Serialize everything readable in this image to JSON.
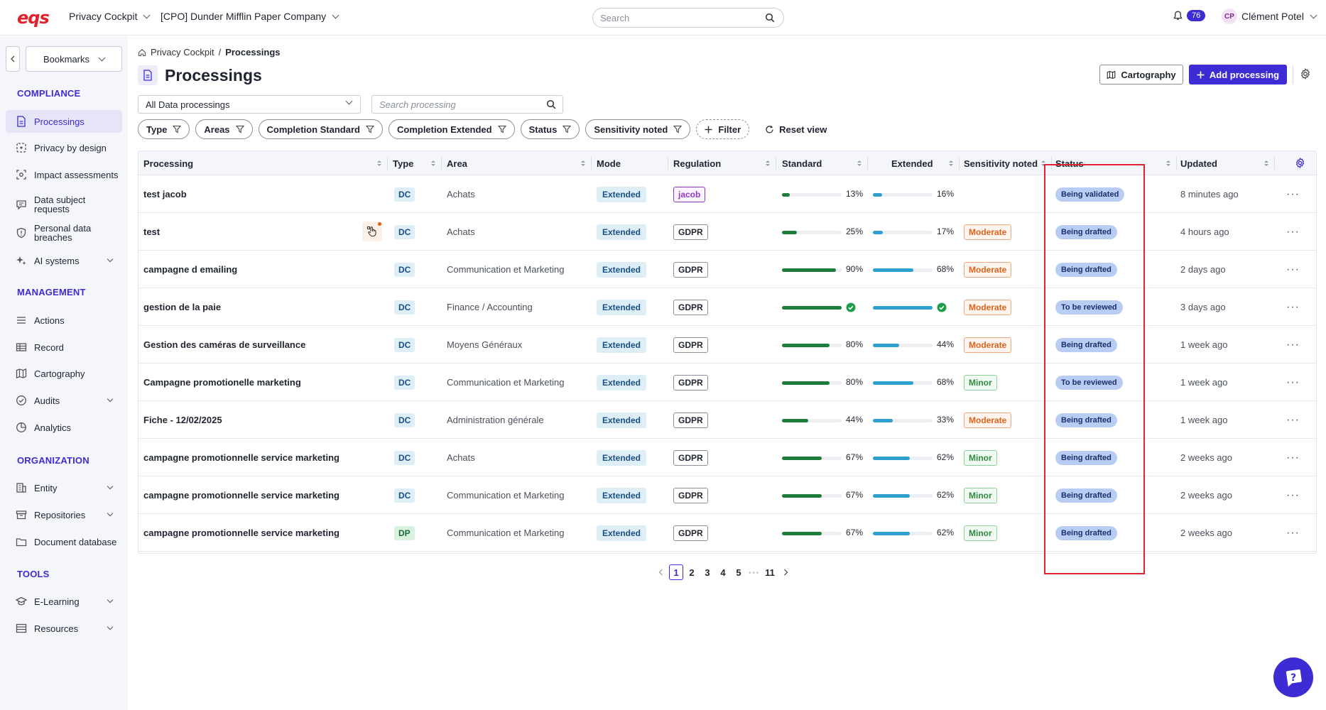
{
  "header": {
    "logo_text": "eqs",
    "app_menu": "Privacy Cockpit",
    "company_menu": "[CPO] Dunder Mifflin Paper Company",
    "search_placeholder": "Search",
    "notification_count": "76",
    "user_initials": "CP",
    "user_name": "Clément Potel"
  },
  "sidebar": {
    "bookmarks_label": "Bookmarks",
    "sections": {
      "compliance": "COMPLIANCE",
      "management": "MANAGEMENT",
      "organization": "ORGANIZATION",
      "tools": "TOOLS"
    },
    "items": {
      "processings": "Processings",
      "privacy_by_design": "Privacy by design",
      "impact_assessments": "Impact assessments",
      "dsr_line1": "Data subject",
      "dsr_line2": "requests",
      "pdb_line1": "Personal data",
      "pdb_line2": "breaches",
      "ai_systems": "AI systems",
      "actions": "Actions",
      "record": "Record",
      "cartography": "Cartography",
      "audits": "Audits",
      "analytics": "Analytics",
      "entity": "Entity",
      "repositories": "Repositories",
      "document_database": "Document database",
      "elearning": "E-Learning",
      "resources": "Resources"
    }
  },
  "breadcrumb": {
    "root": "Privacy Cockpit",
    "separator": "/",
    "current": "Processings"
  },
  "page": {
    "title": "Processings",
    "cartography_button": "Cartography",
    "add_button": "Add processing",
    "dataset_select": "All Data processings",
    "search_placeholder": "Search processing"
  },
  "filters": {
    "chips": [
      "Type",
      "Areas",
      "Completion Standard",
      "Completion Extended",
      "Status",
      "Sensitivity noted"
    ],
    "add_filter": "Filter",
    "reset_view": "Reset view"
  },
  "table": {
    "columns": {
      "processing": "Processing",
      "type": "Type",
      "area": "Area",
      "mode": "Mode",
      "regulation": "Regulation",
      "standard": "Standard",
      "extended": "Extended",
      "sensitivity": "Sensitivity noted",
      "status": "Status",
      "updated": "Updated"
    },
    "rows": [
      {
        "name": "test jacob",
        "type": "DC",
        "area": "Achats",
        "mode": "Extended",
        "regulation": "jacob",
        "standard": 13,
        "standard_label": "13%",
        "extended": 16,
        "extended_label": "16%",
        "sensitivity": "",
        "status": "Being validated",
        "updated": "8 minutes ago"
      },
      {
        "name": "test",
        "type": "DC",
        "area": "Achats",
        "mode": "Extended",
        "regulation": "GDPR",
        "standard": 25,
        "standard_label": "25%",
        "extended": 17,
        "extended_label": "17%",
        "sensitivity": "Moderate",
        "status": "Being drafted",
        "updated": "4 hours ago"
      },
      {
        "name": "campagne d emailing",
        "type": "DC",
        "area": "Communication et Marketing",
        "mode": "Extended",
        "regulation": "GDPR",
        "standard": 90,
        "standard_label": "90%",
        "extended": 68,
        "extended_label": "68%",
        "sensitivity": "Moderate",
        "status": "Being drafted",
        "updated": "2 days ago"
      },
      {
        "name": "gestion de la paie",
        "type": "DC",
        "area": "Finance / Accounting",
        "mode": "Extended",
        "regulation": "GDPR",
        "standard": 100,
        "standard_label": "",
        "extended": 100,
        "extended_label": "",
        "sensitivity": "Moderate",
        "status": "To be reviewed",
        "updated": "3 days ago"
      },
      {
        "name": "Gestion des caméras de surveillance",
        "type": "DC",
        "area": "Moyens Généraux",
        "mode": "Extended",
        "regulation": "GDPR",
        "standard": 80,
        "standard_label": "80%",
        "extended": 44,
        "extended_label": "44%",
        "sensitivity": "Moderate",
        "status": "Being drafted",
        "updated": "1 week ago"
      },
      {
        "name": "Campagne promotionelle marketing",
        "type": "DC",
        "area": "Communication et Marketing",
        "mode": "Extended",
        "regulation": "GDPR",
        "standard": 80,
        "standard_label": "80%",
        "extended": 68,
        "extended_label": "68%",
        "sensitivity": "Minor",
        "status": "To be reviewed",
        "updated": "1 week ago"
      },
      {
        "name": "Fiche - 12/02/2025",
        "type": "DC",
        "area": "Administration générale",
        "mode": "Extended",
        "regulation": "GDPR",
        "standard": 44,
        "standard_label": "44%",
        "extended": 33,
        "extended_label": "33%",
        "sensitivity": "Moderate",
        "status": "Being drafted",
        "updated": "1 week ago"
      },
      {
        "name": "campagne promotionnelle service marketing",
        "type": "DC",
        "area": "Achats",
        "mode": "Extended",
        "regulation": "GDPR",
        "standard": 67,
        "standard_label": "67%",
        "extended": 62,
        "extended_label": "62%",
        "sensitivity": "Minor",
        "status": "Being drafted",
        "updated": "2 weeks ago"
      },
      {
        "name": "campagne promotionnelle service marketing",
        "type": "DC",
        "area": "Communication et Marketing",
        "mode": "Extended",
        "regulation": "GDPR",
        "standard": 67,
        "standard_label": "67%",
        "extended": 62,
        "extended_label": "62%",
        "sensitivity": "Minor",
        "status": "Being drafted",
        "updated": "2 weeks ago"
      },
      {
        "name": "campagne promotionnelle service marketing",
        "type": "DP",
        "area": "Communication et Marketing",
        "mode": "Extended",
        "regulation": "GDPR",
        "standard": 67,
        "standard_label": "67%",
        "extended": 62,
        "extended_label": "62%",
        "sensitivity": "Minor",
        "status": "Being drafted",
        "updated": "2 weeks ago"
      }
    ]
  },
  "pagination": {
    "pages": [
      "1",
      "2",
      "3",
      "4",
      "5"
    ],
    "ellipsis": "···",
    "last": "11",
    "current": "1"
  },
  "colors": {
    "accent": "#3d2bd4",
    "standard_bar": "#1e7d3a",
    "extended_bar": "#2e9fcf",
    "highlight": "#e0242e"
  }
}
